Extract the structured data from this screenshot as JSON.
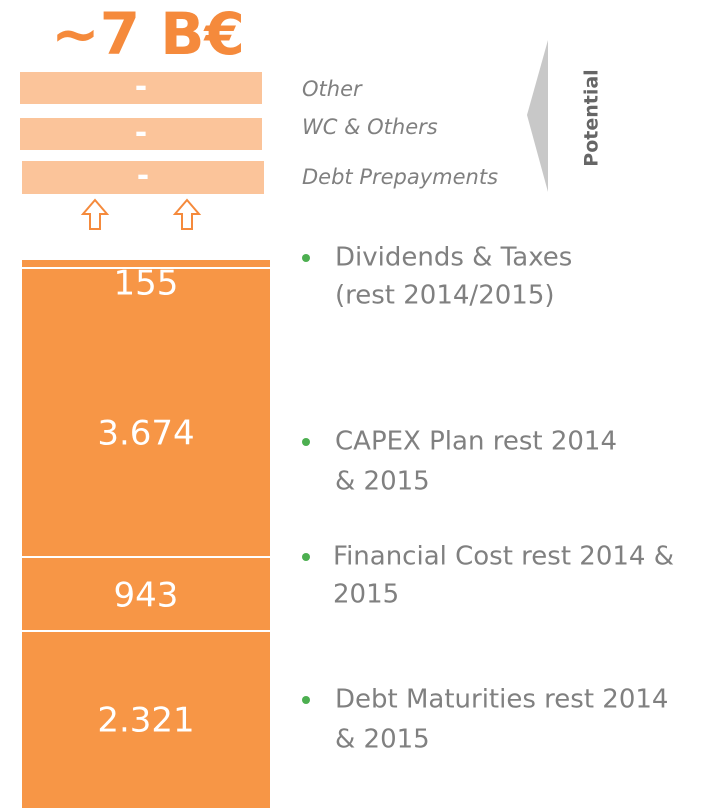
{
  "header": {
    "title": "~7 B€"
  },
  "potential": {
    "label": "Potential",
    "items": [
      {
        "label": "Other",
        "value": "-"
      },
      {
        "label": "WC & Others",
        "value": "-"
      },
      {
        "label": "Debt Prepayments",
        "value": "-"
      }
    ]
  },
  "segments": [
    "155",
    "3.674",
    "943",
    "2.321"
  ],
  "bullets": [
    [
      "Dividends & Taxes",
      "(rest 2014/2015)"
    ],
    [
      "CAPEX Plan rest 2014",
      "& 2015"
    ],
    [
      "Financial Cost rest 2014 &",
      "2015"
    ],
    [
      "Debt Maturities rest 2014",
      "& 2015"
    ]
  ]
}
